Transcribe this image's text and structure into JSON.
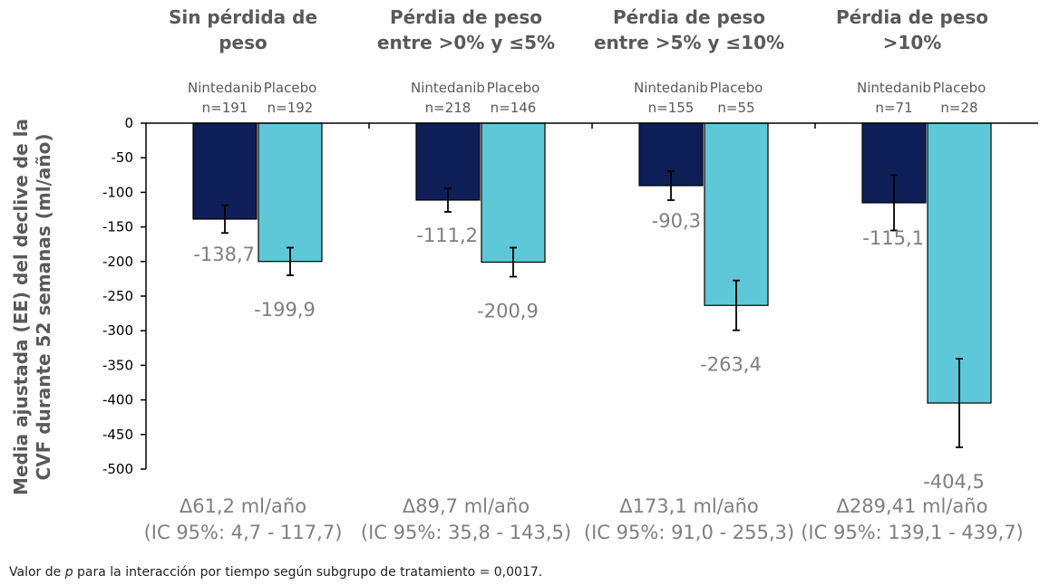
{
  "chart_data": {
    "type": "bar",
    "ylabel": [
      "Media ajustada (EE) del declive de la",
      "CVF durante 52 semanas (ml/año)"
    ],
    "ylim": [
      -500,
      0
    ],
    "yticks": [
      "0",
      "-50",
      "-100",
      "-150",
      "-200",
      "-250",
      "-300",
      "-350",
      "-400",
      "-450",
      "-500"
    ],
    "series_names": [
      "Nintedanib",
      "Placebo"
    ],
    "colors": {
      "nintedanib": "#0d1f56",
      "placebo": "#5ec8d9"
    },
    "groups": [
      {
        "title": [
          "Sin pérdida de",
          "peso"
        ],
        "n": [
          "n=191",
          "n=192"
        ],
        "values": [
          -138.7,
          -199.9
        ],
        "labels": [
          "-138,7",
          "-199,9"
        ],
        "errors": [
          20,
          20
        ],
        "delta": [
          "Δ61,2 ml/año",
          "(IC 95%: 4,7 - 117,7)"
        ]
      },
      {
        "title": [
          "Pérdia de peso",
          "entre >0% y ≤5%"
        ],
        "n": [
          "n=218",
          "n=146"
        ],
        "values": [
          -111.2,
          -200.9
        ],
        "labels": [
          "-111,2",
          "-200,9"
        ],
        "errors": [
          17,
          21
        ],
        "delta": [
          "Δ89,7 ml/año",
          "(IC 95%: 35,8 - 143,5)"
        ]
      },
      {
        "title": [
          "Pérdia de peso",
          "entre >5% y ≤10%"
        ],
        "n": [
          "n=155",
          "n=55"
        ],
        "values": [
          -90.3,
          -263.4
        ],
        "labels": [
          "-90,3",
          "-263,4"
        ],
        "errors": [
          21,
          36
        ],
        "delta": [
          "Δ173,1 ml/año",
          "(IC 95%: 91,0 - 255,3)"
        ]
      },
      {
        "title": [
          "Pérdia de peso",
          ">10%"
        ],
        "n": [
          "n=71",
          "n=28"
        ],
        "values": [
          -115.1,
          -404.5
        ],
        "labels": [
          "-115,1",
          "-404,5"
        ],
        "errors": [
          40,
          64
        ],
        "delta": [
          "Δ289,41 ml/año",
          "(IC 95%: 139,1 - 439,7)"
        ]
      }
    ]
  },
  "footnote": {
    "prefix": "Valor de ",
    "p": "p",
    "suffix": " para la interacción por tiempo según subgrupo de tratamiento = 0,0017."
  }
}
